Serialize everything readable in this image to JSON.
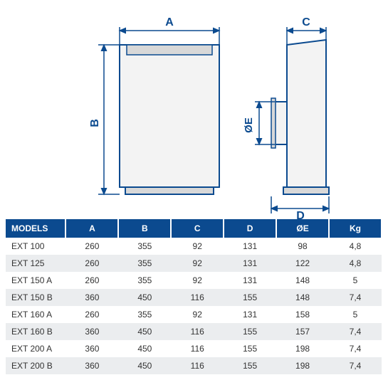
{
  "diagram": {
    "labels": {
      "A": "A",
      "B": "B",
      "C": "C",
      "D": "D",
      "OE": "ØE"
    },
    "colors": {
      "outline": "#0b4a8f",
      "fill_body": "#f3f3f3",
      "fill_shadow": "#d8d8d8",
      "dim_line": "#0b4a8f",
      "text": "#0b4a8f",
      "background": "#ffffff"
    },
    "stroke_width": 2,
    "label_fontsize": 16,
    "label_fontweight": "bold"
  },
  "table": {
    "header_bg": "#0b4a8f",
    "header_fg": "#ffffff",
    "row_odd_bg": "#ffffff",
    "row_even_bg": "#ebedef",
    "text_color": "#333333",
    "fontsize": 12,
    "columns": [
      "MODELS",
      "A",
      "B",
      "C",
      "D",
      "ØE",
      "Kg"
    ],
    "col_widths_pct": [
      16,
      14,
      14,
      14,
      14,
      14,
      14
    ],
    "rows": [
      [
        "EXT 100",
        "260",
        "355",
        "92",
        "131",
        "98",
        "4,8"
      ],
      [
        "EXT 125",
        "260",
        "355",
        "92",
        "131",
        "122",
        "4,8"
      ],
      [
        "EXT 150 A",
        "260",
        "355",
        "92",
        "131",
        "148",
        "5"
      ],
      [
        "EXT 150 B",
        "360",
        "450",
        "116",
        "155",
        "148",
        "7,4"
      ],
      [
        "EXT 160 A",
        "260",
        "355",
        "92",
        "131",
        "158",
        "5"
      ],
      [
        "EXT 160 B",
        "360",
        "450",
        "116",
        "155",
        "157",
        "7,4"
      ],
      [
        "EXT 200 A",
        "360",
        "450",
        "116",
        "155",
        "198",
        "7,4"
      ],
      [
        "EXT 200 B",
        "360",
        "450",
        "116",
        "155",
        "198",
        "7,4"
      ]
    ]
  }
}
